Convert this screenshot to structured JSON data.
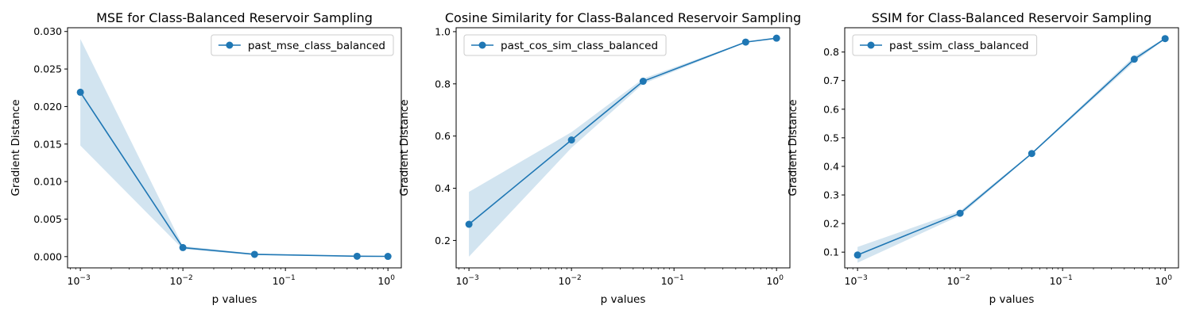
{
  "chart_data": [
    {
      "type": "line",
      "title": "MSE for Class-Balanced Reservoir Sampling",
      "xlabel": "p values",
      "ylabel": "Gradient Distance",
      "xscale": "log",
      "xlim": [
        0.00075,
        1.35
      ],
      "ylim": [
        -0.0015,
        0.0305
      ],
      "x_ticks": [
        {
          "v": 0.001,
          "b": "10",
          "e": "−3"
        },
        {
          "v": 0.01,
          "b": "10",
          "e": "−2"
        },
        {
          "v": 0.1,
          "b": "10",
          "e": "−1"
        },
        {
          "v": 1,
          "b": "10",
          "e": "0"
        }
      ],
      "y_ticks": [
        {
          "v": 0,
          "t": "0.000"
        },
        {
          "v": 0.005,
          "t": "0.005"
        },
        {
          "v": 0.01,
          "t": "0.010"
        },
        {
          "v": 0.015,
          "t": "0.015"
        },
        {
          "v": 0.02,
          "t": "0.020"
        },
        {
          "v": 0.025,
          "t": "0.025"
        },
        {
          "v": 0.03,
          "t": "0.030"
        }
      ],
      "legend_position": "top-right",
      "grid": false,
      "series": [
        {
          "name": "past_mse_class_balanced",
          "x": [
            0.001,
            0.01,
            0.05,
            0.5,
            1
          ],
          "y": [
            0.0219,
            0.0012,
            0.0003,
            5e-05,
            3e-05
          ],
          "lower": [
            0.0148,
            0.001,
            0.0002,
            3e-05,
            2e-05
          ],
          "upper": [
            0.029,
            0.0014,
            0.0004,
            7e-05,
            4e-05
          ],
          "color": "#1f77b4",
          "band_color": "#1f77b4"
        }
      ]
    },
    {
      "type": "line",
      "title": "Cosine Similarity for Class-Balanced Reservoir Sampling",
      "xlabel": "p values",
      "ylabel": "Gradient Distance",
      "xscale": "log",
      "xlim": [
        0.00075,
        1.35
      ],
      "ylim": [
        0.095,
        1.015
      ],
      "x_ticks": [
        {
          "v": 0.001,
          "b": "10",
          "e": "−3"
        },
        {
          "v": 0.01,
          "b": "10",
          "e": "−2"
        },
        {
          "v": 0.1,
          "b": "10",
          "e": "−1"
        },
        {
          "v": 1,
          "b": "10",
          "e": "0"
        }
      ],
      "y_ticks": [
        {
          "v": 0.2,
          "t": "0.2"
        },
        {
          "v": 0.4,
          "t": "0.4"
        },
        {
          "v": 0.6,
          "t": "0.6"
        },
        {
          "v": 0.8,
          "t": "0.8"
        },
        {
          "v": 1.0,
          "t": "1.0"
        }
      ],
      "legend_position": "top-left",
      "grid": false,
      "series": [
        {
          "name": "past_cos_sim_class_balanced",
          "x": [
            0.001,
            0.01,
            0.05,
            0.5,
            1
          ],
          "y": [
            0.262,
            0.585,
            0.81,
            0.96,
            0.975
          ],
          "lower": [
            0.138,
            0.555,
            0.8,
            0.958,
            0.974
          ],
          "upper": [
            0.386,
            0.615,
            0.82,
            0.962,
            0.976
          ],
          "color": "#1f77b4",
          "band_color": "#1f77b4"
        }
      ]
    },
    {
      "type": "line",
      "title": "SSIM for Class-Balanced Reservoir Sampling",
      "xlabel": "p values",
      "ylabel": "Gradient Distance",
      "xscale": "log",
      "xlim": [
        0.00075,
        1.35
      ],
      "ylim": [
        0.045,
        0.885
      ],
      "x_ticks": [
        {
          "v": 0.001,
          "b": "10",
          "e": "−3"
        },
        {
          "v": 0.01,
          "b": "10",
          "e": "−2"
        },
        {
          "v": 0.1,
          "b": "10",
          "e": "−1"
        },
        {
          "v": 1,
          "b": "10",
          "e": "0"
        }
      ],
      "y_ticks": [
        {
          "v": 0.1,
          "t": "0.1"
        },
        {
          "v": 0.2,
          "t": "0.2"
        },
        {
          "v": 0.3,
          "t": "0.3"
        },
        {
          "v": 0.4,
          "t": "0.4"
        },
        {
          "v": 0.5,
          "t": "0.5"
        },
        {
          "v": 0.6,
          "t": "0.6"
        },
        {
          "v": 0.7,
          "t": "0.7"
        },
        {
          "v": 0.8,
          "t": "0.8"
        }
      ],
      "legend_position": "top-left",
      "grid": false,
      "series": [
        {
          "name": "past_ssim_class_balanced",
          "x": [
            0.001,
            0.01,
            0.05,
            0.5,
            1
          ],
          "y": [
            0.09,
            0.236,
            0.445,
            0.775,
            0.847
          ],
          "lower": [
            0.063,
            0.228,
            0.442,
            0.765,
            0.845
          ],
          "upper": [
            0.118,
            0.244,
            0.448,
            0.785,
            0.849
          ],
          "color": "#1f77b4",
          "band_color": "#1f77b4"
        }
      ]
    }
  ]
}
